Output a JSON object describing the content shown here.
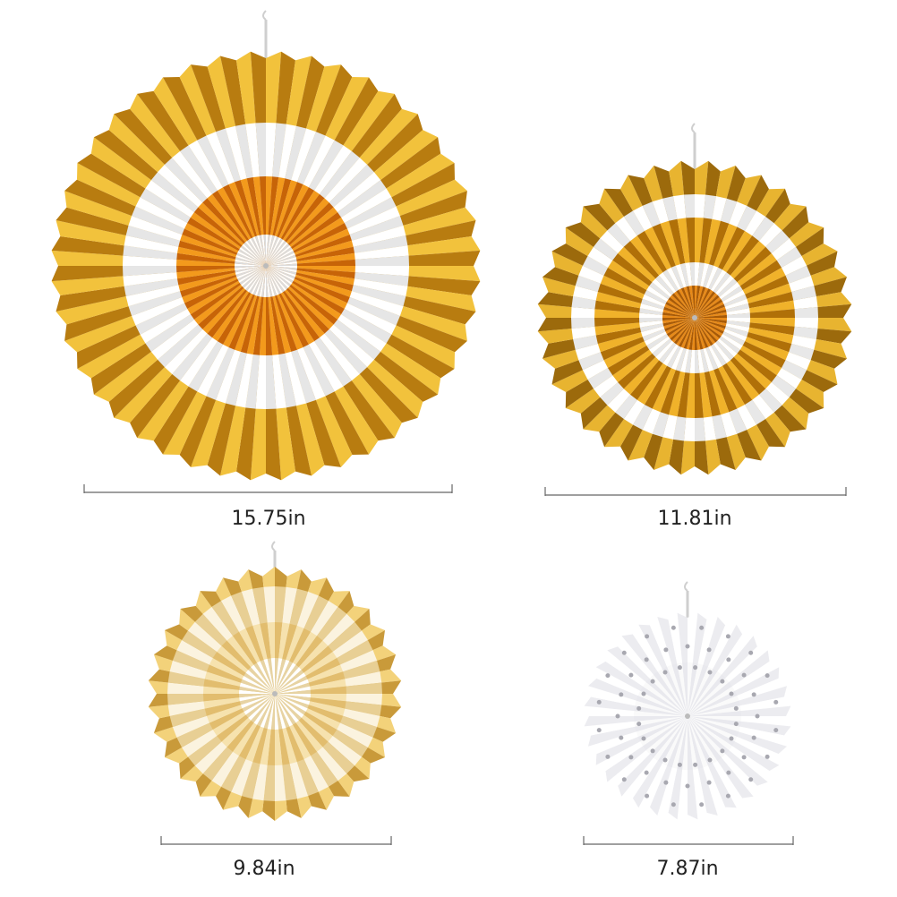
{
  "items": [
    {
      "size": "15.75in"
    },
    {
      "size": "11.81in"
    },
    {
      "size": "9.84in"
    },
    {
      "size": "7.87in"
    }
  ]
}
